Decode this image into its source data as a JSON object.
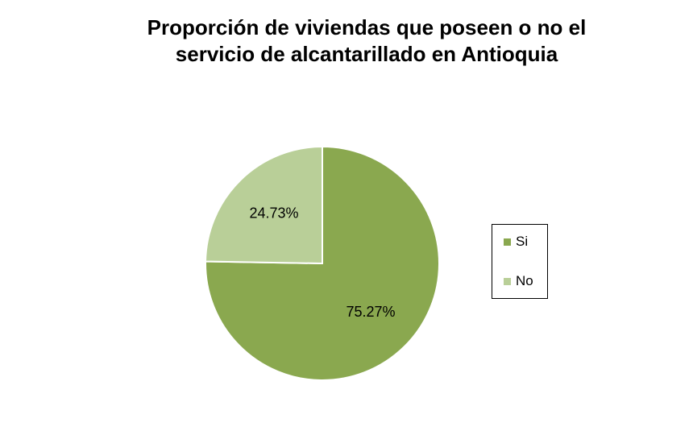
{
  "chart_data": {
    "type": "pie",
    "title": "Proporción de viviendas que poseen o no el\nservicio de  alcantarillado en Antioquia",
    "categories": [
      "Si",
      "No"
    ],
    "values": [
      75.27,
      24.73
    ],
    "data_labels": [
      "75.27%",
      "24.73%"
    ],
    "colors": [
      "#8AA84F",
      "#B9CF98"
    ],
    "legend_position": "right"
  }
}
